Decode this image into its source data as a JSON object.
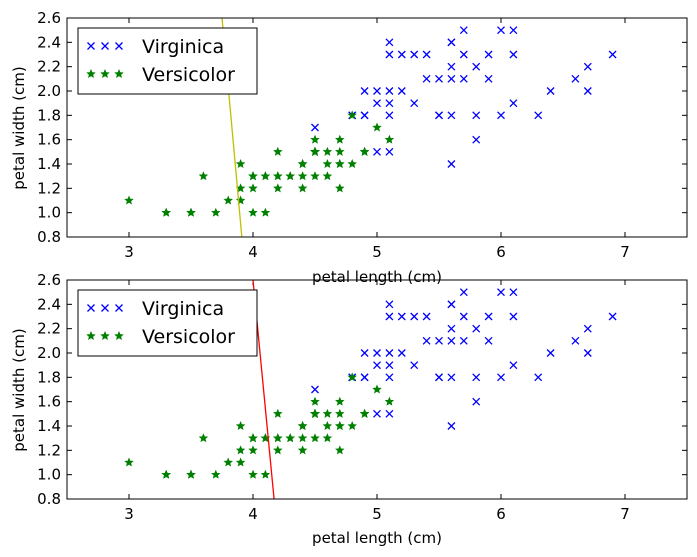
{
  "chart_data": [
    {
      "type": "scatter",
      "xlabel": "petal length (cm)",
      "ylabel": "petal width (cm)",
      "xlim": [
        2.5,
        7.5
      ],
      "ylim": [
        0.8,
        2.6
      ],
      "xticks": [
        "3",
        "4",
        "5",
        "6",
        "7"
      ],
      "yticks": [
        "0.8",
        "1.0",
        "1.2",
        "1.4",
        "1.6",
        "1.8",
        "2.0",
        "2.2",
        "2.4",
        "2.6"
      ],
      "legend_position": "top-left",
      "series": [
        {
          "name": "Virginica",
          "marker": "x",
          "color": "#0000ff",
          "points": [
            [
              6.0,
              2.5
            ],
            [
              5.1,
              1.9
            ],
            [
              5.9,
              2.1
            ],
            [
              5.6,
              1.8
            ],
            [
              5.8,
              2.2
            ],
            [
              6.6,
              2.1
            ],
            [
              4.5,
              1.7
            ],
            [
              6.3,
              1.8
            ],
            [
              5.8,
              1.8
            ],
            [
              6.1,
              2.5
            ],
            [
              5.1,
              2.0
            ],
            [
              5.3,
              1.9
            ],
            [
              5.5,
              2.1
            ],
            [
              5.0,
              2.0
            ],
            [
              5.1,
              2.4
            ],
            [
              5.3,
              2.3
            ],
            [
              5.5,
              1.8
            ],
            [
              6.7,
              2.2
            ],
            [
              6.9,
              2.3
            ],
            [
              5.0,
              1.5
            ],
            [
              5.7,
              2.3
            ],
            [
              4.9,
              2.0
            ],
            [
              6.7,
              2.0
            ],
            [
              4.9,
              1.8
            ],
            [
              5.7,
              2.1
            ],
            [
              6.0,
              1.8
            ],
            [
              4.8,
              1.8
            ],
            [
              4.9,
              1.8
            ],
            [
              5.6,
              2.1
            ],
            [
              5.8,
              1.6
            ],
            [
              6.1,
              1.9
            ],
            [
              6.4,
              2.0
            ],
            [
              5.6,
              2.2
            ],
            [
              5.1,
              1.5
            ],
            [
              5.6,
              1.4
            ],
            [
              6.1,
              2.3
            ],
            [
              5.6,
              2.4
            ],
            [
              5.5,
              1.8
            ],
            [
              4.8,
              1.8
            ],
            [
              5.4,
              2.1
            ],
            [
              5.6,
              2.4
            ],
            [
              5.1,
              2.3
            ],
            [
              5.9,
              2.3
            ],
            [
              5.7,
              2.5
            ],
            [
              5.2,
              2.3
            ],
            [
              5.0,
              1.9
            ],
            [
              5.2,
              2.0
            ],
            [
              5.4,
              2.3
            ],
            [
              5.1,
              1.8
            ]
          ]
        },
        {
          "name": "Versicolor",
          "marker": "star",
          "color": "#008000",
          "points": [
            [
              4.7,
              1.4
            ],
            [
              4.5,
              1.5
            ],
            [
              4.9,
              1.5
            ],
            [
              4.0,
              1.3
            ],
            [
              4.6,
              1.5
            ],
            [
              4.5,
              1.3
            ],
            [
              4.7,
              1.6
            ],
            [
              3.3,
              1.0
            ],
            [
              4.6,
              1.3
            ],
            [
              3.9,
              1.4
            ],
            [
              3.5,
              1.0
            ],
            [
              4.2,
              1.5
            ],
            [
              4.0,
              1.0
            ],
            [
              4.7,
              1.4
            ],
            [
              3.6,
              1.3
            ],
            [
              4.4,
              1.4
            ],
            [
              4.5,
              1.5
            ],
            [
              4.1,
              1.0
            ],
            [
              4.5,
              1.5
            ],
            [
              3.9,
              1.1
            ],
            [
              4.8,
              1.8
            ],
            [
              4.0,
              1.3
            ],
            [
              4.9,
              1.5
            ],
            [
              4.7,
              1.2
            ],
            [
              4.3,
              1.3
            ],
            [
              4.4,
              1.4
            ],
            [
              4.8,
              1.4
            ],
            [
              5.0,
              1.7
            ],
            [
              4.5,
              1.5
            ],
            [
              3.5,
              1.0
            ],
            [
              3.8,
              1.1
            ],
            [
              3.7,
              1.0
            ],
            [
              3.9,
              1.2
            ],
            [
              5.1,
              1.6
            ],
            [
              4.5,
              1.5
            ],
            [
              4.5,
              1.6
            ],
            [
              4.7,
              1.5
            ],
            [
              4.4,
              1.3
            ],
            [
              4.1,
              1.3
            ],
            [
              4.0,
              1.3
            ],
            [
              4.4,
              1.2
            ],
            [
              4.6,
              1.4
            ],
            [
              4.0,
              1.2
            ],
            [
              3.3,
              1.0
            ],
            [
              4.2,
              1.3
            ],
            [
              4.2,
              1.2
            ],
            [
              4.2,
              1.3
            ],
            [
              4.3,
              1.3
            ],
            [
              3.0,
              1.1
            ],
            [
              4.1,
              1.3
            ]
          ]
        }
      ],
      "boundary_line": {
        "color": "#bfbf00",
        "points": [
          [
            3.75,
            2.6
          ],
          [
            3.91,
            0.8
          ]
        ]
      }
    },
    {
      "type": "scatter",
      "xlabel": "petal length (cm)",
      "ylabel": "petal width (cm)",
      "xlim": [
        2.5,
        7.5
      ],
      "ylim": [
        0.8,
        2.6
      ],
      "xticks": [
        "3",
        "4",
        "5",
        "6",
        "7"
      ],
      "yticks": [
        "0.8",
        "1.0",
        "1.2",
        "1.4",
        "1.6",
        "1.8",
        "2.0",
        "2.2",
        "2.4",
        "2.6"
      ],
      "legend_position": "top-left",
      "series": [
        {
          "name": "Virginica",
          "marker": "x",
          "color": "#0000ff",
          "points": [
            [
              6.0,
              2.5
            ],
            [
              5.1,
              1.9
            ],
            [
              5.9,
              2.1
            ],
            [
              5.6,
              1.8
            ],
            [
              5.8,
              2.2
            ],
            [
              6.6,
              2.1
            ],
            [
              4.5,
              1.7
            ],
            [
              6.3,
              1.8
            ],
            [
              5.8,
              1.8
            ],
            [
              6.1,
              2.5
            ],
            [
              5.1,
              2.0
            ],
            [
              5.3,
              1.9
            ],
            [
              5.5,
              2.1
            ],
            [
              5.0,
              2.0
            ],
            [
              5.1,
              2.4
            ],
            [
              5.3,
              2.3
            ],
            [
              5.5,
              1.8
            ],
            [
              6.7,
              2.2
            ],
            [
              6.9,
              2.3
            ],
            [
              5.0,
              1.5
            ],
            [
              5.7,
              2.3
            ],
            [
              4.9,
              2.0
            ],
            [
              6.7,
              2.0
            ],
            [
              4.9,
              1.8
            ],
            [
              5.7,
              2.1
            ],
            [
              6.0,
              1.8
            ],
            [
              4.8,
              1.8
            ],
            [
              4.9,
              1.8
            ],
            [
              5.6,
              2.1
            ],
            [
              5.8,
              1.6
            ],
            [
              6.1,
              1.9
            ],
            [
              6.4,
              2.0
            ],
            [
              5.6,
              2.2
            ],
            [
              5.1,
              1.5
            ],
            [
              5.6,
              1.4
            ],
            [
              6.1,
              2.3
            ],
            [
              5.6,
              2.4
            ],
            [
              5.5,
              1.8
            ],
            [
              4.8,
              1.8
            ],
            [
              5.4,
              2.1
            ],
            [
              5.6,
              2.4
            ],
            [
              5.1,
              2.3
            ],
            [
              5.9,
              2.3
            ],
            [
              5.7,
              2.5
            ],
            [
              5.2,
              2.3
            ],
            [
              5.0,
              1.9
            ],
            [
              5.2,
              2.0
            ],
            [
              5.4,
              2.3
            ],
            [
              5.1,
              1.8
            ]
          ]
        },
        {
          "name": "Versicolor",
          "marker": "star",
          "color": "#008000",
          "points": [
            [
              4.7,
              1.4
            ],
            [
              4.5,
              1.5
            ],
            [
              4.9,
              1.5
            ],
            [
              4.0,
              1.3
            ],
            [
              4.6,
              1.5
            ],
            [
              4.5,
              1.3
            ],
            [
              4.7,
              1.6
            ],
            [
              3.3,
              1.0
            ],
            [
              4.6,
              1.3
            ],
            [
              3.9,
              1.4
            ],
            [
              3.5,
              1.0
            ],
            [
              4.2,
              1.5
            ],
            [
              4.0,
              1.0
            ],
            [
              4.7,
              1.4
            ],
            [
              3.6,
              1.3
            ],
            [
              4.4,
              1.4
            ],
            [
              4.5,
              1.5
            ],
            [
              4.1,
              1.0
            ],
            [
              4.5,
              1.5
            ],
            [
              3.9,
              1.1
            ],
            [
              4.8,
              1.8
            ],
            [
              4.0,
              1.3
            ],
            [
              4.9,
              1.5
            ],
            [
              4.7,
              1.2
            ],
            [
              4.3,
              1.3
            ],
            [
              4.4,
              1.4
            ],
            [
              4.8,
              1.4
            ],
            [
              5.0,
              1.7
            ],
            [
              4.5,
              1.5
            ],
            [
              3.5,
              1.0
            ],
            [
              3.8,
              1.1
            ],
            [
              3.7,
              1.0
            ],
            [
              3.9,
              1.2
            ],
            [
              5.1,
              1.6
            ],
            [
              4.5,
              1.5
            ],
            [
              4.5,
              1.6
            ],
            [
              4.7,
              1.5
            ],
            [
              4.4,
              1.3
            ],
            [
              4.1,
              1.3
            ],
            [
              4.0,
              1.3
            ],
            [
              4.4,
              1.2
            ],
            [
              4.6,
              1.4
            ],
            [
              4.0,
              1.2
            ],
            [
              3.3,
              1.0
            ],
            [
              4.2,
              1.3
            ],
            [
              4.2,
              1.2
            ],
            [
              4.2,
              1.3
            ],
            [
              4.3,
              1.3
            ],
            [
              3.0,
              1.1
            ],
            [
              4.1,
              1.3
            ]
          ]
        }
      ],
      "boundary_line": {
        "color": "#ff0000",
        "points": [
          [
            4.0,
            2.6
          ],
          [
            4.17,
            0.8
          ]
        ]
      }
    }
  ]
}
